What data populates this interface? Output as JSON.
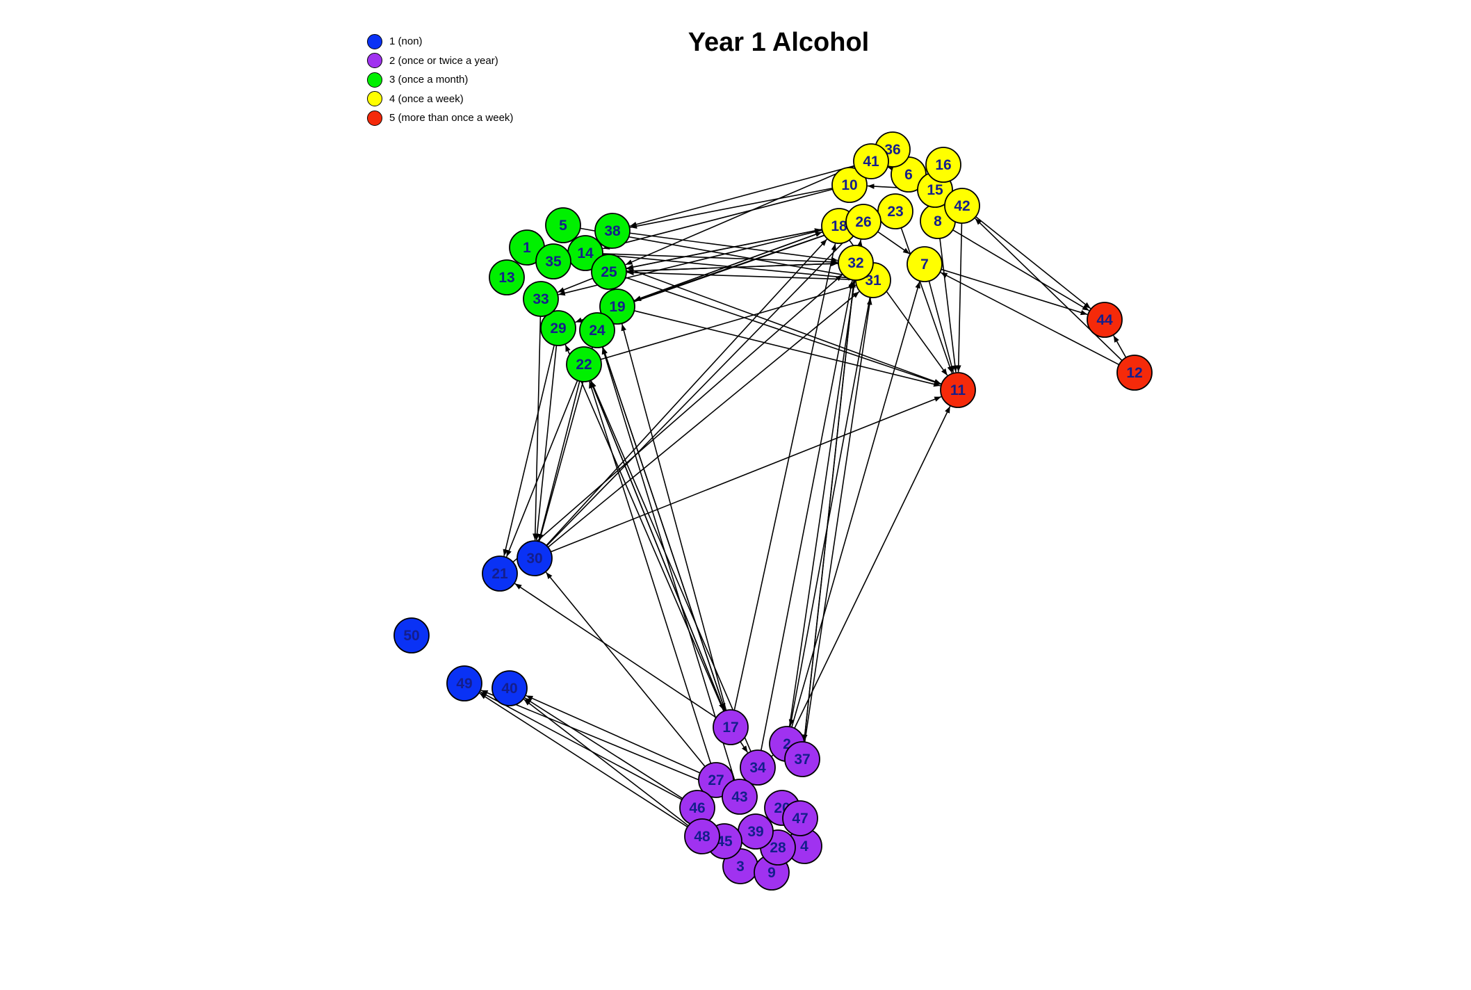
{
  "title": "Year 1 Alcohol",
  "legend": [
    {
      "label": "1 (non)",
      "color": "#0a32f5"
    },
    {
      "label": "2 (once or twice a year)",
      "color": "#a032f0"
    },
    {
      "label": "3 (once a month)",
      "color": "#00f000"
    },
    {
      "label": "4 (once a week)",
      "color": "#ffff00"
    },
    {
      "label": "5 (more than once a week)",
      "color": "#f52a0a"
    }
  ],
  "label_color": "#141e8c",
  "nodes": [
    {
      "id": "1",
      "level": 3
    },
    {
      "id": "5",
      "level": 3
    },
    {
      "id": "13",
      "level": 3
    },
    {
      "id": "14",
      "level": 3
    },
    {
      "id": "19",
      "level": 3
    },
    {
      "id": "22",
      "level": 3
    },
    {
      "id": "24",
      "level": 3
    },
    {
      "id": "25",
      "level": 3
    },
    {
      "id": "29",
      "level": 3
    },
    {
      "id": "33",
      "level": 3
    },
    {
      "id": "35",
      "level": 3
    },
    {
      "id": "38",
      "level": 3
    },
    {
      "id": "6",
      "level": 4
    },
    {
      "id": "7",
      "level": 4
    },
    {
      "id": "8",
      "level": 4
    },
    {
      "id": "10",
      "level": 4
    },
    {
      "id": "15",
      "level": 4
    },
    {
      "id": "16",
      "level": 4
    },
    {
      "id": "18",
      "level": 4
    },
    {
      "id": "23",
      "level": 4
    },
    {
      "id": "26",
      "level": 4
    },
    {
      "id": "31",
      "level": 4
    },
    {
      "id": "32",
      "level": 4
    },
    {
      "id": "36",
      "level": 4
    },
    {
      "id": "41",
      "level": 4
    },
    {
      "id": "42",
      "level": 4
    },
    {
      "id": "11",
      "level": 5
    },
    {
      "id": "12",
      "level": 5
    },
    {
      "id": "44",
      "level": 5
    },
    {
      "id": "21",
      "level": 1
    },
    {
      "id": "30",
      "level": 1
    },
    {
      "id": "40",
      "level": 1
    },
    {
      "id": "49",
      "level": 1
    },
    {
      "id": "50",
      "level": 1
    },
    {
      "id": "2",
      "level": 2
    },
    {
      "id": "3",
      "level": 2
    },
    {
      "id": "4",
      "level": 2
    },
    {
      "id": "9",
      "level": 2
    },
    {
      "id": "17",
      "level": 2
    },
    {
      "id": "20",
      "level": 2
    },
    {
      "id": "27",
      "level": 2
    },
    {
      "id": "28",
      "level": 2
    },
    {
      "id": "34",
      "level": 2
    },
    {
      "id": "37",
      "level": 2
    },
    {
      "id": "39",
      "level": 2
    },
    {
      "id": "43",
      "level": 2
    },
    {
      "id": "45",
      "level": 2
    },
    {
      "id": "46",
      "level": 2
    },
    {
      "id": "47",
      "level": 2
    },
    {
      "id": "48",
      "level": 2
    }
  ],
  "edges": [
    [
      "10",
      "38"
    ],
    [
      "41",
      "38"
    ],
    [
      "36",
      "25"
    ],
    [
      "10",
      "14"
    ],
    [
      "26",
      "19"
    ],
    [
      "18",
      "19"
    ],
    [
      "18",
      "25"
    ],
    [
      "26",
      "29"
    ],
    [
      "15",
      "10"
    ],
    [
      "36",
      "6"
    ],
    [
      "6",
      "41"
    ],
    [
      "26",
      "7"
    ],
    [
      "18",
      "11"
    ],
    [
      "8",
      "11"
    ],
    [
      "42",
      "11"
    ],
    [
      "7",
      "11"
    ],
    [
      "23",
      "11"
    ],
    [
      "8",
      "44"
    ],
    [
      "7",
      "44"
    ],
    [
      "42",
      "44"
    ],
    [
      "12",
      "44"
    ],
    [
      "12",
      "42"
    ],
    [
      "12",
      "7"
    ],
    [
      "38",
      "32"
    ],
    [
      "5",
      "31"
    ],
    [
      "1",
      "31"
    ],
    [
      "14",
      "32"
    ],
    [
      "25",
      "32"
    ],
    [
      "25",
      "11"
    ],
    [
      "19",
      "11"
    ],
    [
      "14",
      "11"
    ],
    [
      "31",
      "25"
    ],
    [
      "32",
      "25"
    ],
    [
      "18",
      "33"
    ],
    [
      "22",
      "31"
    ],
    [
      "19",
      "18"
    ],
    [
      "25",
      "18"
    ],
    [
      "29",
      "30"
    ],
    [
      "33",
      "30"
    ],
    [
      "22",
      "30"
    ],
    [
      "22",
      "21"
    ],
    [
      "24",
      "30"
    ],
    [
      "29",
      "21"
    ],
    [
      "30",
      "11"
    ],
    [
      "30",
      "18"
    ],
    [
      "30",
      "26"
    ],
    [
      "21",
      "32"
    ],
    [
      "30",
      "31"
    ],
    [
      "17",
      "21"
    ],
    [
      "27",
      "30"
    ],
    [
      "17",
      "24"
    ],
    [
      "17",
      "29"
    ],
    [
      "34",
      "22"
    ],
    [
      "27",
      "22"
    ],
    [
      "43",
      "24"
    ],
    [
      "17",
      "22"
    ],
    [
      "17",
      "19"
    ],
    [
      "17",
      "18"
    ],
    [
      "34",
      "32"
    ],
    [
      "2",
      "26"
    ],
    [
      "37",
      "31"
    ],
    [
      "2",
      "7"
    ],
    [
      "2",
      "11"
    ],
    [
      "37",
      "32"
    ],
    [
      "32",
      "37"
    ],
    [
      "31",
      "2"
    ],
    [
      "17",
      "34"
    ],
    [
      "34",
      "2"
    ],
    [
      "27",
      "40"
    ],
    [
      "46",
      "40"
    ],
    [
      "48",
      "40"
    ],
    [
      "46",
      "49"
    ],
    [
      "48",
      "49"
    ],
    [
      "43",
      "49"
    ],
    [
      "24",
      "17"
    ],
    [
      "22",
      "17"
    ],
    [
      "25",
      "33"
    ]
  ]
}
